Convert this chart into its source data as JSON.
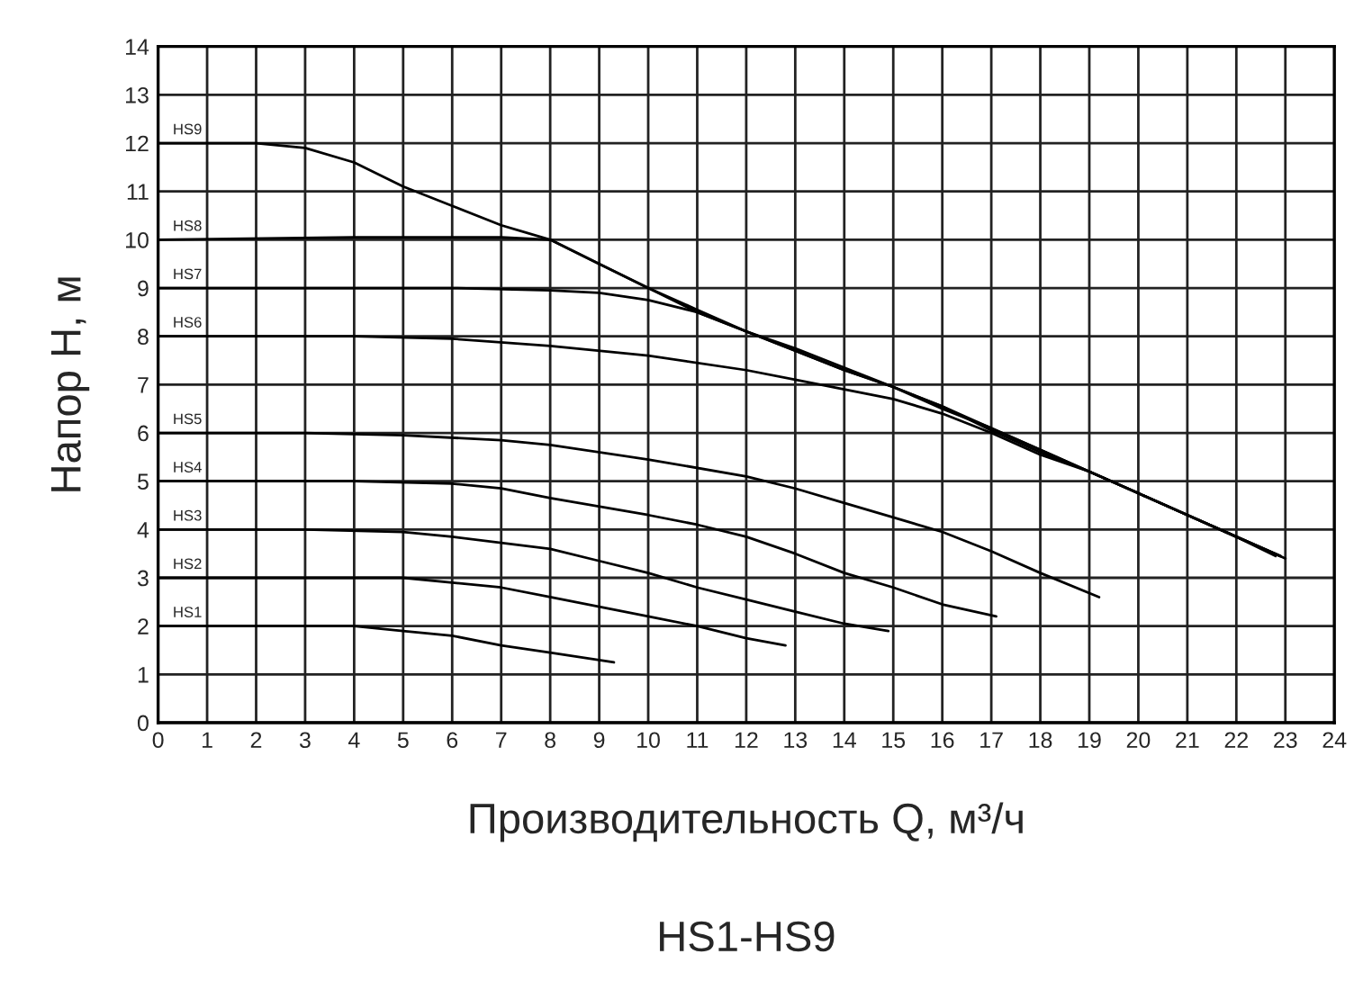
{
  "chart_data": {
    "type": "line",
    "title": "HS1-HS9",
    "xlabel": "Производительность Q, м³/ч",
    "ylabel": "Напор H, м",
    "xlim": [
      0,
      24
    ],
    "ylim": [
      0,
      14
    ],
    "xticks": [
      0,
      1,
      2,
      3,
      4,
      5,
      6,
      7,
      8,
      9,
      10,
      11,
      12,
      13,
      14,
      15,
      16,
      17,
      18,
      19,
      20,
      21,
      22,
      23,
      24
    ],
    "yticks": [
      0,
      1,
      2,
      3,
      4,
      5,
      6,
      7,
      8,
      9,
      10,
      11,
      12,
      13,
      14
    ],
    "grid": true,
    "legend": false,
    "marker": "none",
    "line_style": "solid",
    "series": [
      {
        "name": "HS9",
        "color": "#000000",
        "x": [
          0,
          2,
          3,
          4,
          5,
          6,
          7,
          8,
          9,
          10,
          11,
          12,
          13,
          14,
          15,
          16,
          17,
          18,
          19,
          20,
          21,
          22,
          23
        ],
        "values": [
          12,
          12,
          11.9,
          11.6,
          11.1,
          10.7,
          10.3,
          10.0,
          9.5,
          9.0,
          8.5,
          8.1,
          7.7,
          7.3,
          6.95,
          6.55,
          6.05,
          5.6,
          5.2,
          4.75,
          4.3,
          3.85,
          3.4
        ]
      },
      {
        "name": "HS8",
        "color": "#000000",
        "x": [
          0,
          4,
          7,
          8,
          9,
          10,
          11,
          12,
          13,
          14,
          15,
          16,
          17,
          18,
          19,
          20,
          21,
          22,
          22.9
        ],
        "values": [
          10,
          10.05,
          10.05,
          10.0,
          9.5,
          9.0,
          8.55,
          8.1,
          7.7,
          7.3,
          6.95,
          6.55,
          6.1,
          5.65,
          5.2,
          4.75,
          4.3,
          3.85,
          3.45
        ]
      },
      {
        "name": "HS7",
        "color": "#000000",
        "x": [
          0,
          6,
          8,
          9,
          10,
          11,
          12,
          13,
          14,
          15,
          16,
          17,
          18,
          19,
          20,
          21,
          22,
          22.8
        ],
        "values": [
          9,
          9,
          8.95,
          8.9,
          8.75,
          8.5,
          8.1,
          7.75,
          7.35,
          6.95,
          6.5,
          6.1,
          5.65,
          5.2,
          4.75,
          4.3,
          3.85,
          3.45
        ]
      },
      {
        "name": "HS6",
        "color": "#000000",
        "x": [
          0,
          4,
          6,
          8,
          10,
          12,
          13,
          14,
          15,
          16,
          17,
          18,
          19,
          20,
          21,
          22,
          22.9
        ],
        "values": [
          8,
          8,
          7.95,
          7.8,
          7.6,
          7.3,
          7.1,
          6.9,
          6.7,
          6.4,
          6.0,
          5.55,
          5.2,
          4.75,
          4.3,
          3.85,
          3.45
        ]
      },
      {
        "name": "HS5",
        "color": "#000000",
        "x": [
          0,
          3,
          5,
          7,
          8,
          10,
          12,
          13,
          14,
          15,
          16,
          17,
          18,
          19.2
        ],
        "values": [
          6,
          6,
          5.95,
          5.85,
          5.75,
          5.45,
          5.1,
          4.85,
          4.55,
          4.25,
          3.95,
          3.55,
          3.1,
          2.6
        ]
      },
      {
        "name": "HS4",
        "color": "#000000",
        "x": [
          0,
          4,
          6,
          7,
          8,
          10,
          11,
          12,
          13,
          14,
          15,
          16,
          17.1
        ],
        "values": [
          5,
          5,
          4.95,
          4.85,
          4.65,
          4.3,
          4.1,
          3.85,
          3.5,
          3.1,
          2.8,
          2.45,
          2.2
        ]
      },
      {
        "name": "HS3",
        "color": "#000000",
        "x": [
          0,
          3,
          5,
          6,
          8,
          9,
          10,
          11,
          12,
          13,
          14,
          14.9
        ],
        "values": [
          4,
          4,
          3.95,
          3.85,
          3.6,
          3.35,
          3.1,
          2.8,
          2.55,
          2.3,
          2.05,
          1.9
        ]
      },
      {
        "name": "HS2",
        "color": "#000000",
        "x": [
          0,
          5,
          7,
          8,
          9,
          10,
          11,
          12,
          12.8
        ],
        "values": [
          3,
          3,
          2.8,
          2.6,
          2.4,
          2.2,
          2.0,
          1.75,
          1.6
        ]
      },
      {
        "name": "HS1",
        "color": "#000000",
        "x": [
          0,
          3,
          4,
          5,
          6,
          7,
          8,
          9.3
        ],
        "values": [
          2,
          2,
          2,
          1.9,
          1.8,
          1.6,
          1.45,
          1.25
        ]
      }
    ]
  }
}
